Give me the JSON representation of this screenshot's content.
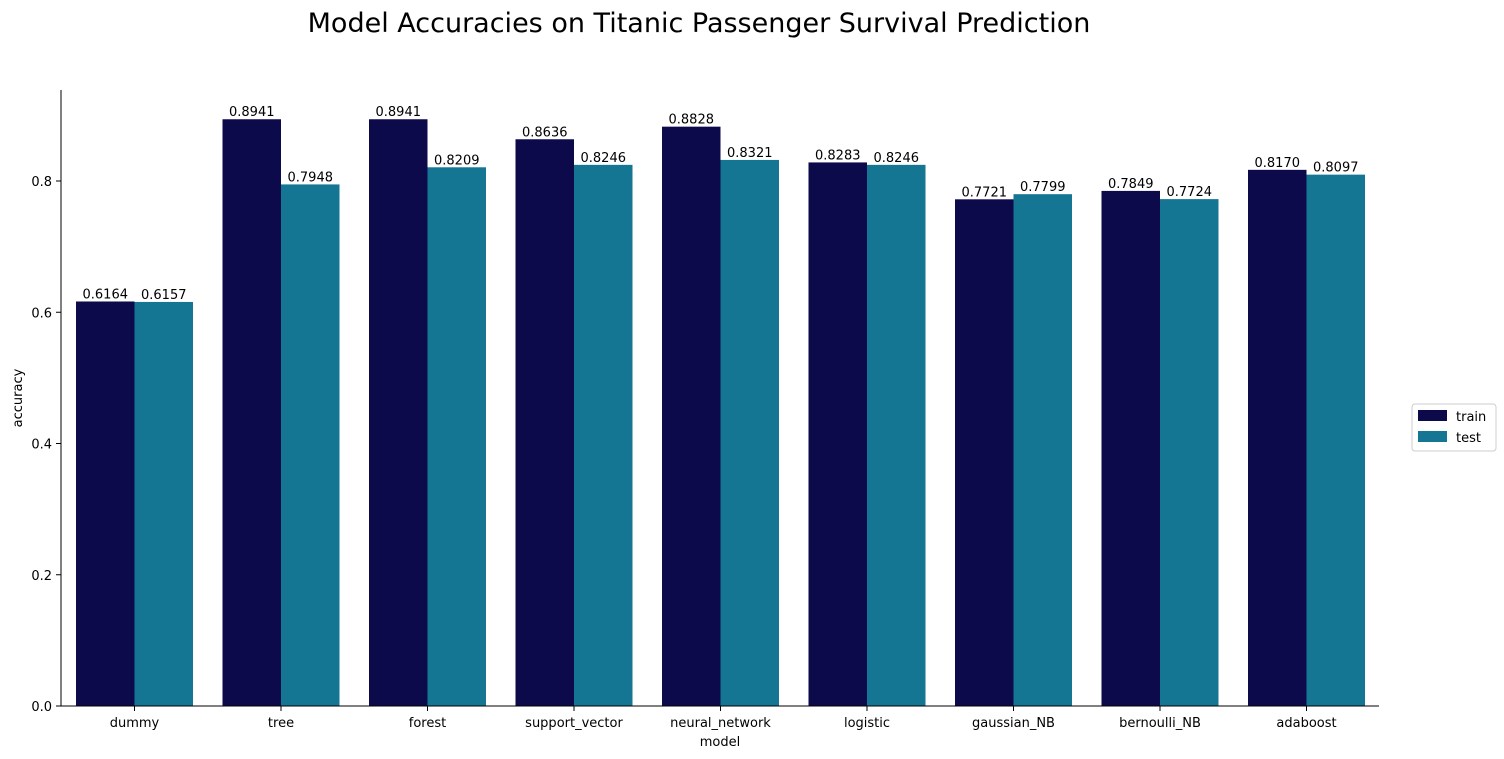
{
  "chart_data": {
    "type": "bar",
    "title": "Model Accuracies on Titanic Passenger Survival Prediction",
    "xlabel": "model",
    "ylabel": "accuracy",
    "ylim": [
      0,
      0.94
    ],
    "yticks": [
      "0.0",
      "0.2",
      "0.4",
      "0.6",
      "0.8"
    ],
    "grid": false,
    "legend_position": "right",
    "categories": [
      "dummy",
      "tree",
      "forest",
      "support_vector",
      "neural_network",
      "logistic",
      "gaussian_NB",
      "bernoulli_NB",
      "adaboost"
    ],
    "series": [
      {
        "name": "train",
        "color": "#0c0a4a",
        "values": [
          0.6164,
          0.8941,
          0.8941,
          0.8636,
          0.8828,
          0.8283,
          0.7721,
          0.7849,
          0.817
        ],
        "labels": [
          "0.6164",
          "0.8941",
          "0.8941",
          "0.8636",
          "0.8828",
          "0.8283",
          "0.7721",
          "0.7849",
          "0.8170"
        ]
      },
      {
        "name": "test",
        "color": "#157694",
        "values": [
          0.6157,
          0.7948,
          0.8209,
          0.8246,
          0.8321,
          0.8246,
          0.7799,
          0.7724,
          0.8097
        ],
        "labels": [
          "0.6157",
          "0.7948",
          "0.8209",
          "0.8246",
          "0.8321",
          "0.8246",
          "0.7799",
          "0.7724",
          "0.8097"
        ]
      }
    ]
  }
}
